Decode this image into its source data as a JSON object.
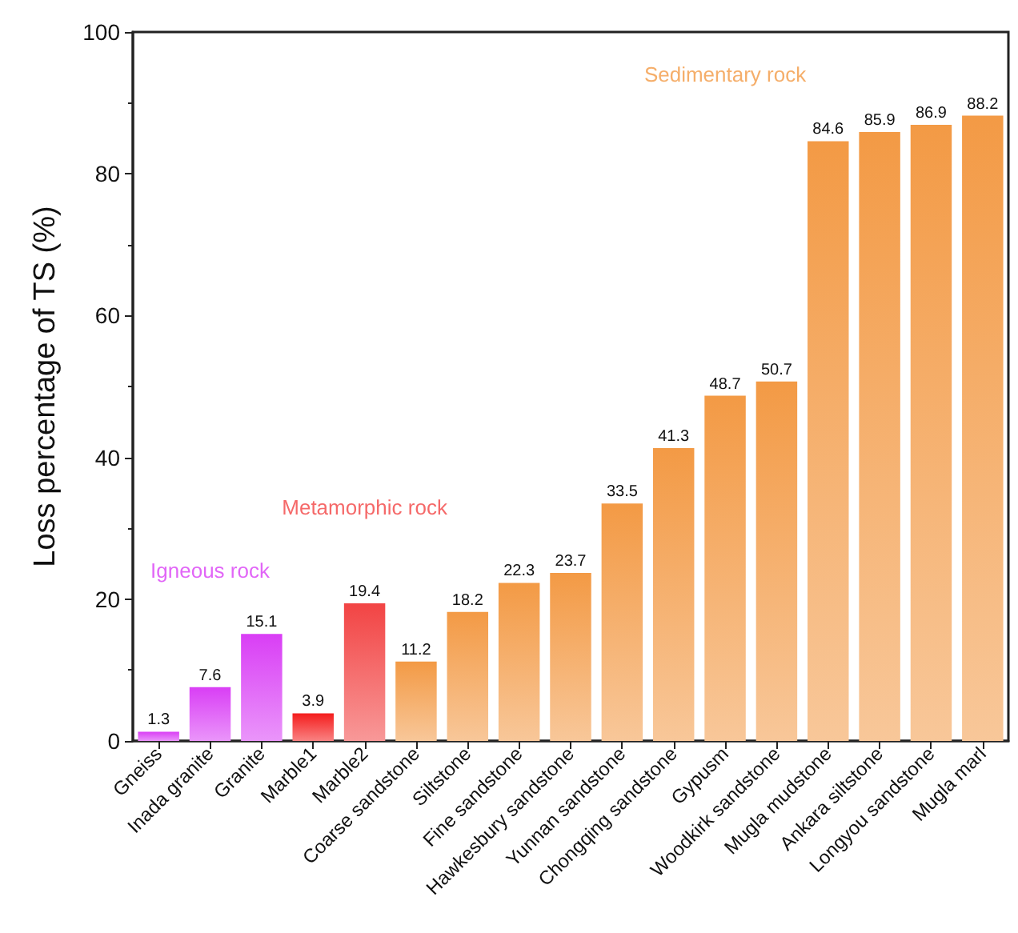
{
  "chart_data": {
    "type": "bar",
    "ylabel": "Loss percentage of TS (%)",
    "categories": [
      "Gneiss",
      "Inada granite",
      "Granite",
      "Marble1",
      "Marble2",
      "Coarse sandstone",
      "Siltstone",
      "Fine sandstone",
      "Hawkesbury sandstone",
      "Yunnan sandstone",
      "Chongqing sandstone",
      "Gypusm",
      "Woodkirk sandstone",
      "Mugla mudstone",
      "Ankara siltstone",
      "Longyou sandstone",
      "Mugla marl"
    ],
    "values": [
      1.3,
      7.6,
      15.1,
      3.9,
      19.4,
      11.2,
      18.2,
      22.3,
      23.7,
      33.5,
      41.3,
      48.7,
      50.7,
      84.6,
      85.9,
      86.9,
      88.2
    ],
    "colors": [
      "#d93ef5",
      "#d93ef5",
      "#d93ef5",
      "#f41c1c",
      "#f24444",
      "#f39a45",
      "#f39a45",
      "#f39a45",
      "#f39a45",
      "#f39a45",
      "#f39a45",
      "#f39a45",
      "#f39a45",
      "#f39a45",
      "#f39a45",
      "#f39a45",
      "#f39a45"
    ],
    "data_labels": true,
    "ylim": [
      0,
      100
    ],
    "yticks": [
      0,
      20,
      40,
      60,
      80,
      100
    ],
    "grid": false,
    "annotations": [
      "Igneous rock",
      "Metamorphic rock",
      "Sedimentary rock"
    ]
  }
}
